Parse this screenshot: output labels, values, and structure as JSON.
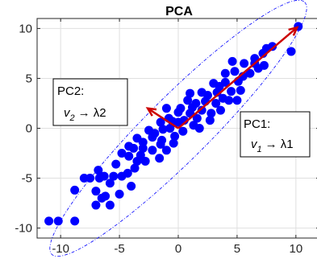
{
  "chart_data": {
    "type": "scatter",
    "title": "PCA",
    "xlabel": "",
    "ylabel": "",
    "xlim": [
      -12,
      12
    ],
    "ylim": [
      -11,
      11
    ],
    "xticks": [
      -10,
      -5,
      0,
      5,
      10
    ],
    "yticks": [
      -10,
      -5,
      0,
      5,
      10
    ],
    "xtick_labels": [
      "-10",
      "-5",
      "0",
      "5",
      "10"
    ],
    "ytick_labels": [
      "-10",
      "-5",
      "0",
      "5",
      "10"
    ],
    "grid": true,
    "marker_color": "#0000ff",
    "arrow_color": "#cc0000",
    "ellipse_color": "#0000ff",
    "points": [
      [
        -11.0,
        -9.3
      ],
      [
        -10.2,
        -9.3
      ],
      [
        -8.8,
        -9.3
      ],
      [
        10.2,
        10.2
      ],
      [
        -7.5,
        -5.0
      ],
      [
        -7.0,
        -6.3
      ],
      [
        -6.7,
        -5.0
      ],
      [
        -6.5,
        -7.0
      ],
      [
        -6.3,
        -4.8
      ],
      [
        -6.8,
        -4.2
      ],
      [
        -6.2,
        -6.8
      ],
      [
        -5.8,
        -5.5
      ],
      [
        -5.5,
        -4.8
      ],
      [
        -5.3,
        -3.6
      ],
      [
        -5.0,
        -6.6
      ],
      [
        -4.8,
        -4.8
      ],
      [
        -4.3,
        -4.5
      ],
      [
        -4.8,
        -2.5
      ],
      [
        -4.2,
        -2.8
      ],
      [
        -3.5,
        -3.3
      ],
      [
        -3.7,
        -4.0
      ],
      [
        -4.2,
        -1.8
      ],
      [
        -3.8,
        -2.0
      ],
      [
        -3.0,
        -2.0
      ],
      [
        -3.0,
        -1.4
      ],
      [
        -3.2,
        -2.7
      ],
      [
        -2.8,
        -3.3
      ],
      [
        -2.5,
        -0.2
      ],
      [
        -2.2,
        -0.9
      ],
      [
        -2.2,
        -2.2
      ],
      [
        -1.6,
        -3.0
      ],
      [
        -1.5,
        -1.6
      ],
      [
        -1.5,
        0.6
      ],
      [
        -1.3,
        -0.1
      ],
      [
        -1.4,
        -1.2
      ],
      [
        -1.0,
        2.0
      ],
      [
        -0.7,
        0.0
      ],
      [
        -0.5,
        0.7
      ],
      [
        -0.3,
        -0.8
      ],
      [
        0.0,
        0.6
      ],
      [
        0.0,
        1.6
      ],
      [
        0.2,
        2.0
      ],
      [
        0.5,
        0.8
      ],
      [
        1.0,
        1.5
      ],
      [
        1.2,
        2.1
      ],
      [
        1.5,
        2.5
      ],
      [
        1.8,
        0.0
      ],
      [
        1.6,
        1.0
      ],
      [
        2.0,
        1.8
      ],
      [
        2.3,
        2.7
      ],
      [
        2.5,
        3.3
      ],
      [
        2.7,
        0.8
      ],
      [
        2.8,
        1.5
      ],
      [
        3.2,
        2.5
      ],
      [
        3.3,
        3.6
      ],
      [
        3.5,
        4.2
      ],
      [
        3.8,
        3.0
      ],
      [
        4.0,
        4.6
      ],
      [
        4.3,
        2.8
      ],
      [
        4.5,
        3.7
      ],
      [
        4.0,
        5.5
      ],
      [
        4.8,
        5.7
      ],
      [
        5.1,
        4.7
      ],
      [
        5.3,
        3.8
      ],
      [
        5.0,
        2.8
      ],
      [
        5.5,
        5.2
      ],
      [
        4.6,
        6.7
      ],
      [
        5.6,
        6.5
      ],
      [
        6.1,
        5.5
      ],
      [
        6.5,
        7.0
      ],
      [
        6.8,
        6.0
      ],
      [
        7.2,
        7.5
      ],
      [
        7.5,
        8.0
      ],
      [
        7.3,
        6.3
      ],
      [
        6.5,
        6.5
      ],
      [
        8.0,
        8.2
      ],
      [
        -0.4,
        -1.5
      ],
      [
        -2.0,
        -0.5
      ],
      [
        0.8,
        2.8
      ],
      [
        -0.8,
        1.0
      ],
      [
        3.0,
        4.5
      ],
      [
        2.0,
        3.6
      ],
      [
        -7.0,
        -7.7
      ],
      [
        -5.8,
        -7.7
      ],
      [
        -8.8,
        -6.2
      ],
      [
        -8.0,
        -5.0
      ],
      [
        -4.0,
        -5.8
      ],
      [
        -3.5,
        -1.0
      ],
      [
        -1.0,
        -2.2
      ],
      [
        1.0,
        3.5
      ],
      [
        3.6,
        1.8
      ],
      [
        9.6,
        7.7
      ],
      [
        1.3,
        0.3
      ],
      [
        0.4,
        -0.3
      ]
    ],
    "ellipse": {
      "cx": 0,
      "cy": 0,
      "semi_major": 15.2,
      "semi_minor": 2.7,
      "angle_deg": 45
    },
    "arrows": [
      {
        "name": "PC1",
        "from": [
          0,
          0
        ],
        "to": [
          10.1,
          10.1
        ]
      },
      {
        "name": "PC2",
        "from": [
          0,
          0
        ],
        "to": [
          -2.6,
          2.0
        ]
      }
    ],
    "annotations": [
      {
        "id": "pc2",
        "line1": "PC2:",
        "var": "v",
        "sub": "2",
        "rel": "→ λ2"
      },
      {
        "id": "pc1",
        "line1": "PC1:",
        "var": "v",
        "sub": "1",
        "rel": "→ λ1"
      }
    ]
  }
}
